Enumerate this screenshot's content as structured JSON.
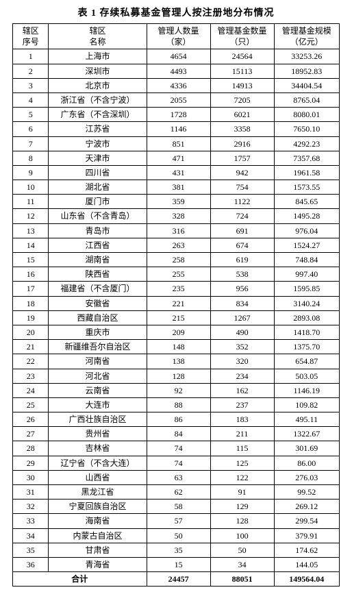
{
  "title": "表 1  存续私募基金管理人按注册地分布情况",
  "columns": {
    "seq": [
      "辖区",
      "序号"
    ],
    "name": [
      "辖区",
      "名称"
    ],
    "managers": [
      "管理人数量",
      "（家）"
    ],
    "funds": [
      "管理基金数量",
      "（只）"
    ],
    "aum": [
      "管理基金规模",
      "（亿元）"
    ]
  },
  "rows": [
    {
      "seq": "1",
      "name": "上海市",
      "managers": "4654",
      "funds": "24564",
      "aum": "33253.26"
    },
    {
      "seq": "2",
      "name": "深圳市",
      "managers": "4493",
      "funds": "15113",
      "aum": "18952.83"
    },
    {
      "seq": "3",
      "name": "北京市",
      "managers": "4336",
      "funds": "14913",
      "aum": "34404.54"
    },
    {
      "seq": "4",
      "name": "浙江省（不含宁波）",
      "managers": "2055",
      "funds": "7205",
      "aum": "8765.04"
    },
    {
      "seq": "5",
      "name": "广东省（不含深圳）",
      "managers": "1728",
      "funds": "6021",
      "aum": "8080.01"
    },
    {
      "seq": "6",
      "name": "江苏省",
      "managers": "1146",
      "funds": "3358",
      "aum": "7650.10"
    },
    {
      "seq": "7",
      "name": "宁波市",
      "managers": "851",
      "funds": "2916",
      "aum": "4292.23"
    },
    {
      "seq": "8",
      "name": "天津市",
      "managers": "471",
      "funds": "1757",
      "aum": "7357.68"
    },
    {
      "seq": "9",
      "name": "四川省",
      "managers": "431",
      "funds": "942",
      "aum": "1961.58"
    },
    {
      "seq": "10",
      "name": "湖北省",
      "managers": "381",
      "funds": "754",
      "aum": "1573.55"
    },
    {
      "seq": "11",
      "name": "厦门市",
      "managers": "359",
      "funds": "1122",
      "aum": "845.65"
    },
    {
      "seq": "12",
      "name": "山东省（不含青岛）",
      "managers": "328",
      "funds": "724",
      "aum": "1495.28"
    },
    {
      "seq": "13",
      "name": "青岛市",
      "managers": "316",
      "funds": "691",
      "aum": "976.04"
    },
    {
      "seq": "14",
      "name": "江西省",
      "managers": "263",
      "funds": "674",
      "aum": "1524.27"
    },
    {
      "seq": "15",
      "name": "湖南省",
      "managers": "258",
      "funds": "619",
      "aum": "748.84"
    },
    {
      "seq": "16",
      "name": "陕西省",
      "managers": "255",
      "funds": "538",
      "aum": "997.40"
    },
    {
      "seq": "17",
      "name": "福建省（不含厦门）",
      "managers": "235",
      "funds": "956",
      "aum": "1595.85"
    },
    {
      "seq": "18",
      "name": "安徽省",
      "managers": "221",
      "funds": "834",
      "aum": "3140.24"
    },
    {
      "seq": "19",
      "name": "西藏自治区",
      "managers": "215",
      "funds": "1267",
      "aum": "2893.08"
    },
    {
      "seq": "20",
      "name": "重庆市",
      "managers": "209",
      "funds": "490",
      "aum": "1418.70"
    },
    {
      "seq": "21",
      "name": "新疆维吾尔自治区",
      "managers": "148",
      "funds": "352",
      "aum": "1375.70"
    },
    {
      "seq": "22",
      "name": "河南省",
      "managers": "138",
      "funds": "320",
      "aum": "654.87"
    },
    {
      "seq": "23",
      "name": "河北省",
      "managers": "128",
      "funds": "234",
      "aum": "503.05"
    },
    {
      "seq": "24",
      "name": "云南省",
      "managers": "92",
      "funds": "162",
      "aum": "1146.19"
    },
    {
      "seq": "25",
      "name": "大连市",
      "managers": "88",
      "funds": "237",
      "aum": "109.82"
    },
    {
      "seq": "26",
      "name": "广西壮族自治区",
      "managers": "86",
      "funds": "183",
      "aum": "495.11"
    },
    {
      "seq": "27",
      "name": "贵州省",
      "managers": "84",
      "funds": "211",
      "aum": "1322.67"
    },
    {
      "seq": "28",
      "name": "吉林省",
      "managers": "74",
      "funds": "115",
      "aum": "301.69"
    },
    {
      "seq": "29",
      "name": "辽宁省（不含大连）",
      "managers": "74",
      "funds": "125",
      "aum": "86.00"
    },
    {
      "seq": "30",
      "name": "山西省",
      "managers": "63",
      "funds": "122",
      "aum": "276.03"
    },
    {
      "seq": "31",
      "name": "黑龙江省",
      "managers": "62",
      "funds": "91",
      "aum": "99.52"
    },
    {
      "seq": "32",
      "name": "宁夏回族自治区",
      "managers": "58",
      "funds": "129",
      "aum": "269.12"
    },
    {
      "seq": "33",
      "name": "海南省",
      "managers": "57",
      "funds": "128",
      "aum": "299.54"
    },
    {
      "seq": "34",
      "name": "内蒙古自治区",
      "managers": "50",
      "funds": "100",
      "aum": "379.91"
    },
    {
      "seq": "35",
      "name": "甘肃省",
      "managers": "35",
      "funds": "50",
      "aum": "174.62"
    },
    {
      "seq": "36",
      "name": "青海省",
      "managers": "15",
      "funds": "34",
      "aum": "144.05"
    }
  ],
  "total": {
    "label": "合计",
    "managers": "24457",
    "funds": "88051",
    "aum": "149564.04"
  }
}
